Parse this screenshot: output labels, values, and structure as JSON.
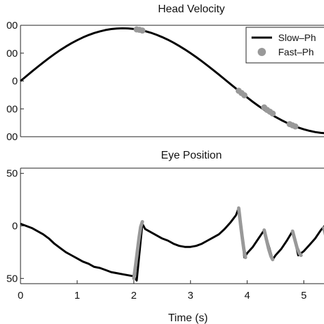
{
  "chart_data": [
    {
      "type": "line",
      "title": "Head Velocity",
      "xlabel": "",
      "ylabel": "",
      "xlim": [
        0,
        5.5
      ],
      "ylim": [
        -100,
        100
      ],
      "ytick_values": [
        -100,
        -50,
        0,
        50,
        100
      ],
      "ytick_labels": [
        "00",
        "00",
        "0",
        "00",
        "00"
      ],
      "grid": false,
      "legend": {
        "placement": "top-right",
        "entries": [
          {
            "label": "Slow–Ph",
            "color": "#000000",
            "style": "line"
          },
          {
            "label": "Fast–Ph",
            "color": "#999999",
            "style": "marker"
          }
        ]
      },
      "series": [
        {
          "name": "Slow–Ph",
          "color": "#000000",
          "x": [
            0.0,
            0.1,
            0.2,
            0.3,
            0.4,
            0.5,
            0.6,
            0.7,
            0.8,
            0.9,
            1.0,
            1.1,
            1.2,
            1.3,
            1.4,
            1.5,
            1.6,
            1.7,
            1.8,
            1.9,
            2.0,
            2.1,
            2.2,
            2.3,
            2.4,
            2.5,
            2.6,
            2.7,
            2.8,
            2.9,
            3.0,
            3.1,
            3.2,
            3.3,
            3.4,
            3.5,
            3.6,
            3.7,
            3.8,
            3.9,
            4.0,
            4.1,
            4.2,
            4.3,
            4.4,
            4.5,
            4.6,
            4.7,
            4.8,
            4.9,
            5.0,
            5.1,
            5.2,
            5.3,
            5.4,
            5.5
          ],
          "values": [
            0,
            8.5,
            16.9,
            25.2,
            33.2,
            41,
            48.4,
            55.4,
            61.9,
            67.8,
            73.3,
            78.2,
            82.4,
            86.1,
            89.1,
            91.5,
            93.2,
            94.2,
            94.6,
            94.4,
            93.4,
            91.8,
            89.5,
            86.6,
            83,
            78.8,
            74.1,
            68.8,
            63,
            56.7,
            50,
            42.9,
            35.5,
            27.7,
            19.7,
            11.5,
            3.2,
            -5.1,
            -13.4,
            -21.6,
            -29.6,
            -37.4,
            -44.8,
            -51.8,
            -58.4,
            -64.5,
            -70.1,
            -75.1,
            -79.6,
            -83.5,
            -86.8,
            -89.5,
            -91.6,
            -93.1,
            -94,
            -94.4
          ]
        },
        {
          "name": "Fast–Ph",
          "color": "#999999",
          "x": [
            2.05,
            2.1,
            2.15,
            3.85,
            3.9,
            3.95,
            4.3,
            4.35,
            4.4,
            4.45,
            4.75,
            4.8,
            4.85
          ],
          "values": [
            92.6,
            91.8,
            90.6,
            -17.5,
            -21.6,
            -25.6,
            -47.4,
            -51.8,
            -55.0,
            -58.4,
            -77.4,
            -79.6,
            -81.6
          ]
        }
      ]
    },
    {
      "type": "line",
      "title": "Eye Position",
      "xlabel": "Time (s)",
      "ylabel": "",
      "xlim": [
        0,
        5.5
      ],
      "ylim": [
        -55,
        55
      ],
      "xtick_values": [
        0,
        1,
        2,
        3,
        4,
        5
      ],
      "xtick_labels": [
        "0",
        "1",
        "2",
        "3",
        "4",
        "5"
      ],
      "ytick_values": [
        -50,
        0,
        50
      ],
      "ytick_labels": [
        "50",
        "0",
        "50"
      ],
      "grid": false,
      "series": [
        {
          "name": "Slow–Ph",
          "color": "#000000",
          "x": [
            0,
            0.1,
            0.2,
            0.3,
            0.4,
            0.5,
            0.6,
            0.7,
            0.8,
            0.9,
            1.0,
            1.1,
            1.2,
            1.3,
            1.4,
            1.5,
            1.6,
            1.7,
            1.8,
            1.9,
            2.0,
            2.05,
            2.15,
            2.2,
            2.3,
            2.4,
            2.5,
            2.6,
            2.7,
            2.8,
            2.9,
            3.0,
            3.1,
            3.2,
            3.3,
            3.4,
            3.5,
            3.6,
            3.7,
            3.8,
            3.85,
            3.95,
            4.0,
            4.1,
            4.2,
            4.3,
            4.45,
            4.5,
            4.6,
            4.7,
            4.8,
            4.9,
            5.0,
            5.1,
            5.2,
            5.3,
            5.4,
            5.5
          ],
          "values": [
            2,
            0,
            -2,
            -5,
            -8,
            -12,
            -17,
            -21,
            -25,
            -28,
            -31,
            -34,
            -36,
            -39,
            -40,
            -42,
            -44,
            -45,
            -46,
            -47,
            -48,
            -52,
            2,
            -3,
            -6,
            -9,
            -12,
            -14,
            -17,
            -19,
            -20,
            -20,
            -19,
            -17,
            -14,
            -11,
            -8,
            -3,
            3,
            10,
            17,
            -30,
            -26,
            -20,
            -12,
            -4,
            -32,
            -28,
            -22,
            -14,
            -5,
            -28,
            -24,
            -18,
            -12,
            -4,
            2,
            6
          ]
        },
        {
          "name": "Fast–Ph",
          "color": "#999999",
          "x": [
            2.0,
            2.03,
            2.06,
            2.09,
            2.12,
            2.15,
            3.85,
            3.88,
            3.91,
            3.94,
            3.97,
            4.3,
            4.34,
            4.38,
            4.42,
            4.45,
            4.8,
            4.84,
            4.88,
            4.92,
            4.95,
            5.35,
            5.4,
            5.45,
            5.5
          ],
          "values": [
            -50,
            -38,
            -25,
            -12,
            -1,
            4,
            17,
            3,
            -10,
            -22,
            -30,
            -4,
            -13,
            -22,
            -29,
            -32,
            -5,
            -13,
            -21,
            -26,
            -28,
            -2,
            -12,
            -18,
            -20
          ]
        }
      ]
    }
  ]
}
